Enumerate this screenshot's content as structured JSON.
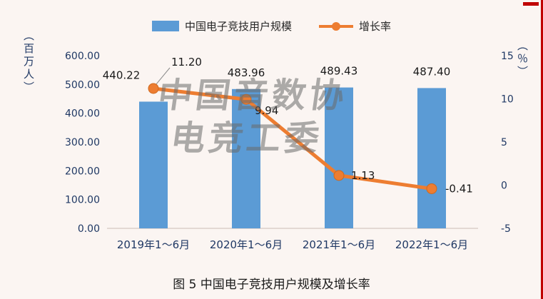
{
  "page": {
    "caption": "图 5 中国电子竞技用户规模及增长率",
    "watermark_line1": "中国音数协",
    "watermark_line2": "电竞工委"
  },
  "legend": {
    "bar_label": "中国电子竞技用户规模",
    "line_label": "增长率"
  },
  "axes": {
    "left_unit": "（百万人）",
    "right_unit": "（％）"
  },
  "colors": {
    "bar": "#5b9bd5",
    "line": "#ed7d31",
    "accent_red": "#c00000",
    "axis_text": "#1f3864"
  },
  "chart_data": {
    "type": "combo",
    "title": "图 5 中国电子竞技用户规模及增长率",
    "categories": [
      "2019年1～6月",
      "2020年1～6月",
      "2021年1～6月",
      "2022年1～6月"
    ],
    "series": [
      {
        "name": "中国电子竞技用户规模",
        "type": "bar",
        "axis": "left",
        "unit": "百万人",
        "color": "#5b9bd5",
        "values": [
          440.22,
          483.96,
          489.43,
          487.4
        ],
        "labels": [
          "440.22",
          "483.96",
          "489.43",
          "487.40"
        ]
      },
      {
        "name": "增长率",
        "type": "line",
        "axis": "right",
        "unit": "%",
        "color": "#ed7d31",
        "values": [
          11.2,
          9.94,
          1.13,
          -0.41
        ],
        "labels": [
          "11.20",
          "9.94",
          "1.13",
          "-0.41"
        ]
      }
    ],
    "left_axis": {
      "min": 0,
      "max": 600,
      "tick_values": [
        600,
        500,
        400,
        300,
        200,
        100,
        0
      ],
      "tick_labels": [
        "600.00",
        "500.00",
        "400.00",
        "300.00",
        "200.00",
        "100.00",
        "0.00"
      ],
      "unit": "（百万人）"
    },
    "right_axis": {
      "min": -5,
      "max": 15,
      "tick_values": [
        15,
        10,
        5,
        0,
        -5
      ],
      "tick_labels": [
        "15",
        "10",
        "5",
        "0",
        "-5"
      ],
      "unit": "（％）"
    },
    "legend_position": "top",
    "grid": false
  }
}
